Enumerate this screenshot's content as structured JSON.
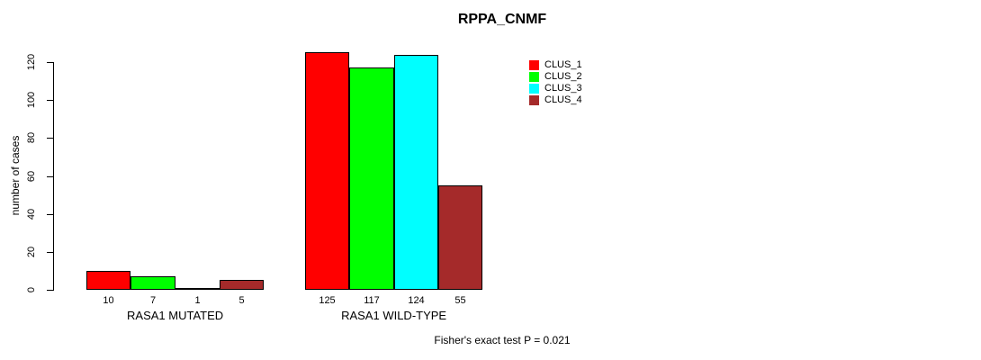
{
  "title": "RPPA_CNMF",
  "chart_data": {
    "type": "bar",
    "title": "RPPA_CNMF",
    "xlabel": "",
    "ylabel": "number of cases",
    "ylim": [
      0,
      120
    ],
    "yticks": [
      0,
      20,
      40,
      60,
      80,
      100,
      120
    ],
    "grid": false,
    "legend_position": "top-right",
    "categories": [
      "RASA1 MUTATED",
      "RASA1 WILD-TYPE"
    ],
    "series": [
      {
        "name": "CLUS_1",
        "color": "#ff0000",
        "values": [
          10,
          125
        ]
      },
      {
        "name": "CLUS_2",
        "color": "#00ff00",
        "values": [
          7,
          117
        ]
      },
      {
        "name": "CLUS_3",
        "color": "#00ffff",
        "values": [
          1,
          124
        ]
      },
      {
        "name": "CLUS_4",
        "color": "#a52a2a",
        "values": [
          5,
          55
        ]
      }
    ],
    "bar_labels": [
      [
        "10",
        "7",
        "1",
        "5"
      ],
      [
        "125",
        "117",
        "124",
        "55"
      ]
    ],
    "annotation": "Fisher's exact test P = 0.021"
  },
  "colors": {
    "background": "#ffffff",
    "axis": "#000000",
    "text": "#000000",
    "bar_border": "#000000"
  }
}
